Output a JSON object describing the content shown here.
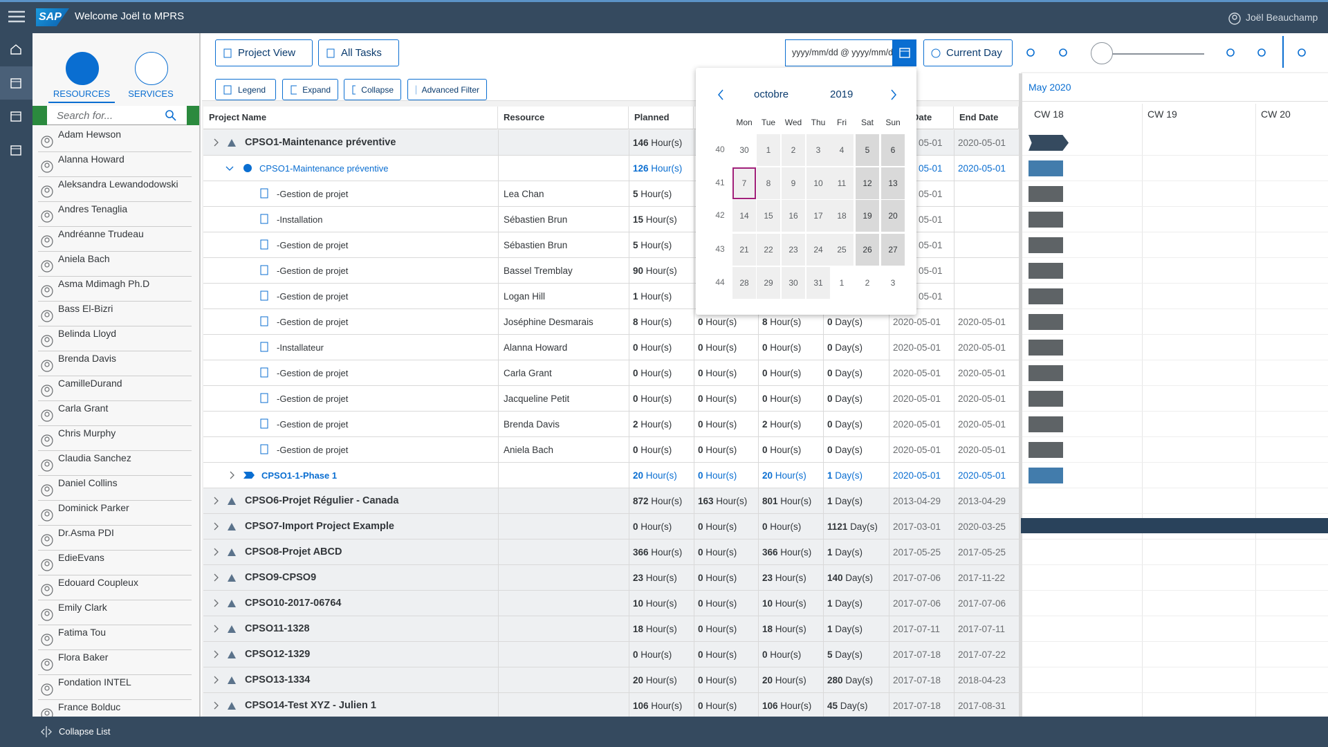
{
  "header": {
    "logo": "SAP",
    "welcome": "Welcome Joël to MPRS",
    "user": "Joël Beauchamp"
  },
  "sidebar": {
    "tabs": [
      "RESOURCES",
      "SERVICES"
    ],
    "search_placeholder": "Search for...",
    "resources": [
      "Adam Hewson",
      "Alanna Howard",
      "Aleksandra Lewandodowski",
      "Andres Tenaglia",
      "Andréanne Trudeau",
      "Aniela Bach",
      "Asma Mdimagh Ph.D",
      "Bass El-Bizri",
      "Belinda Lloyd",
      "Brenda Davis",
      "CamilleDurand",
      "Carla Grant",
      "Chris Murphy",
      "Claudia Sanchez",
      "Daniel Collins",
      "Dominick Parker",
      "Dr.Asma PDI",
      "EdieEvans",
      "Edouard Coupleux",
      "Emily Clark",
      "Fatima Tou",
      "Flora Baker",
      "Fondation INTEL",
      "France Bolduc"
    ],
    "footer": "Collapse List"
  },
  "toolbar": {
    "view": "Project View",
    "filter": "All Tasks",
    "date_placeholder": "yyyy/mm/dd @ yyyy/mm/dd",
    "current_day": "Current Day",
    "actions": [
      "Legend",
      "Expand",
      "Collapse",
      "Advanced Filter"
    ]
  },
  "table": {
    "columns": [
      "Project Name",
      "Resource",
      "Planned",
      "Date",
      "End Date"
    ],
    "rows": [
      {
        "kind": "project",
        "name": "CPSO1-Maintenance préventive",
        "planned": [
          146,
          "Hour(s)"
        ],
        "start": "05-01",
        "end": "2020-05-01"
      },
      {
        "kind": "summary",
        "name": "CPSO1-Maintenance préventive",
        "planned": [
          126,
          "Hour(s)"
        ],
        "start": "05-01",
        "end": "2020-05-01"
      },
      {
        "kind": "task",
        "name": "-Gestion de projet",
        "resource": "Lea Chan",
        "planned": [
          5,
          "Hour(s)"
        ],
        "start": "05-01"
      },
      {
        "kind": "task",
        "name": "-Installation",
        "resource": "Sébastien Brun",
        "planned": [
          15,
          "Hour(s)"
        ],
        "start": "05-01"
      },
      {
        "kind": "task",
        "name": "-Gestion de projet",
        "resource": "Sébastien Brun",
        "planned": [
          5,
          "Hour(s)"
        ],
        "start": "05-01"
      },
      {
        "kind": "task",
        "name": "-Gestion de projet",
        "resource": "Bassel Tremblay",
        "planned": [
          90,
          "Hour(s)"
        ],
        "start": "05-01"
      },
      {
        "kind": "task",
        "name": "-Gestion de projet",
        "resource": "Logan Hill",
        "planned": [
          1,
          "Hour(s)"
        ],
        "start": "05-01"
      },
      {
        "kind": "task",
        "name": "-Gestion de projet",
        "resource": "Joséphine Desmarais",
        "planned": [
          8,
          "Hour(s)"
        ],
        "h2": [
          0,
          "Hour(s)"
        ],
        "h3": [
          8,
          "Hour(s)"
        ],
        "days": [
          0,
          "Day(s)"
        ],
        "start": "2020-05-01",
        "end": "2020-05-01"
      },
      {
        "kind": "task",
        "name": "-Installateur",
        "resource": "Alanna Howard",
        "planned": [
          0,
          "Hour(s)"
        ],
        "h2": [
          0,
          "Hour(s)"
        ],
        "h3": [
          0,
          "Hour(s)"
        ],
        "days": [
          0,
          "Day(s)"
        ],
        "start": "2020-05-01",
        "end": "2020-05-01"
      },
      {
        "kind": "task",
        "name": "-Gestion de projet",
        "resource": "Carla Grant",
        "planned": [
          0,
          "Hour(s)"
        ],
        "h2": [
          0,
          "Hour(s)"
        ],
        "h3": [
          0,
          "Hour(s)"
        ],
        "days": [
          0,
          "Day(s)"
        ],
        "start": "2020-05-01",
        "end": "2020-05-01"
      },
      {
        "kind": "task",
        "name": "-Gestion de projet",
        "resource": "Jacqueline Petit",
        "planned": [
          0,
          "Hour(s)"
        ],
        "h2": [
          0,
          "Hour(s)"
        ],
        "h3": [
          0,
          "Hour(s)"
        ],
        "days": [
          0,
          "Day(s)"
        ],
        "start": "2020-05-01",
        "end": "2020-05-01"
      },
      {
        "kind": "task",
        "name": "-Gestion de projet",
        "resource": "Brenda Davis",
        "planned": [
          2,
          "Hour(s)"
        ],
        "h2": [
          0,
          "Hour(s)"
        ],
        "h3": [
          2,
          "Hour(s)"
        ],
        "days": [
          0,
          "Day(s)"
        ],
        "start": "2020-05-01",
        "end": "2020-05-01"
      },
      {
        "kind": "task",
        "name": "-Gestion de projet",
        "resource": "Aniela Bach",
        "planned": [
          0,
          "Hour(s)"
        ],
        "h2": [
          0,
          "Hour(s)"
        ],
        "h3": [
          0,
          "Hour(s)"
        ],
        "days": [
          0,
          "Day(s)"
        ],
        "start": "2020-05-01",
        "end": "2020-05-01"
      },
      {
        "kind": "phase",
        "name": "CPSO1-1-Phase 1",
        "planned": [
          20,
          "Hour(s)"
        ],
        "h2": [
          0,
          "Hour(s)"
        ],
        "h3": [
          20,
          "Hour(s)"
        ],
        "days": [
          1,
          "Day(s)"
        ],
        "start": "2020-05-01",
        "end": "2020-05-01"
      },
      {
        "kind": "project",
        "name": "CPSO6-Projet Régulier - Canada",
        "planned": [
          872,
          "Hour(s)"
        ],
        "h2": [
          163,
          "Hour(s)"
        ],
        "h3": [
          801,
          "Hour(s)"
        ],
        "days": [
          1,
          "Day(s)"
        ],
        "start": "2013-04-29",
        "end": "2013-04-29"
      },
      {
        "kind": "project",
        "name": "CPSO7-Import Project Example",
        "planned": [
          0,
          "Hour(s)"
        ],
        "h2": [
          0,
          "Hour(s)"
        ],
        "h3": [
          0,
          "Hour(s)"
        ],
        "days": [
          1121,
          "Day(s)"
        ],
        "start": "2017-03-01",
        "end": "2020-03-25"
      },
      {
        "kind": "project",
        "name": "CPSO8-Projet ABCD",
        "planned": [
          366,
          "Hour(s)"
        ],
        "h2": [
          0,
          "Hour(s)"
        ],
        "h3": [
          366,
          "Hour(s)"
        ],
        "days": [
          1,
          "Day(s)"
        ],
        "start": "2017-05-25",
        "end": "2017-05-25"
      },
      {
        "kind": "project",
        "name": "CPSO9-CPSO9",
        "planned": [
          23,
          "Hour(s)"
        ],
        "h2": [
          0,
          "Hour(s)"
        ],
        "h3": [
          23,
          "Hour(s)"
        ],
        "days": [
          140,
          "Day(s)"
        ],
        "start": "2017-07-06",
        "end": "2017-11-22"
      },
      {
        "kind": "project",
        "name": "CPSO10-2017-06764",
        "planned": [
          10,
          "Hour(s)"
        ],
        "h2": [
          0,
          "Hour(s)"
        ],
        "h3": [
          10,
          "Hour(s)"
        ],
        "days": [
          1,
          "Day(s)"
        ],
        "start": "2017-07-06",
        "end": "2017-07-06"
      },
      {
        "kind": "project",
        "name": "CPSO11-1328",
        "planned": [
          18,
          "Hour(s)"
        ],
        "h2": [
          0,
          "Hour(s)"
        ],
        "h3": [
          18,
          "Hour(s)"
        ],
        "days": [
          1,
          "Day(s)"
        ],
        "start": "2017-07-11",
        "end": "2017-07-11"
      },
      {
        "kind": "project",
        "name": "CPSO12-1329",
        "planned": [
          0,
          "Hour(s)"
        ],
        "h2": [
          0,
          "Hour(s)"
        ],
        "h3": [
          0,
          "Hour(s)"
        ],
        "days": [
          5,
          "Day(s)"
        ],
        "start": "2017-07-18",
        "end": "2017-07-22"
      },
      {
        "kind": "project",
        "name": "CPSO13-1334",
        "planned": [
          20,
          "Hour(s)"
        ],
        "h2": [
          0,
          "Hour(s)"
        ],
        "h3": [
          20,
          "Hour(s)"
        ],
        "days": [
          280,
          "Day(s)"
        ],
        "start": "2017-07-18",
        "end": "2018-04-23"
      },
      {
        "kind": "project",
        "name": "CPSO14-Test XYZ - Julien 1",
        "planned": [
          106,
          "Hour(s)"
        ],
        "h2": [
          0,
          "Hour(s)"
        ],
        "h3": [
          106,
          "Hour(s)"
        ],
        "days": [
          45,
          "Day(s)"
        ],
        "start": "2017-07-18",
        "end": "2017-08-31"
      }
    ]
  },
  "gantt": {
    "month": "May 2020",
    "weeks": [
      "CW 18",
      "CW 19",
      "CW 20"
    ]
  },
  "calendar": {
    "month": "octobre",
    "year": 2019,
    "weekdays": [
      "Mon",
      "Tue",
      "Wed",
      "Thu",
      "Fri",
      "Sat",
      "Sun"
    ],
    "weeks": [
      {
        "cw": 40,
        "days": [
          30,
          1,
          2,
          3,
          4,
          5,
          6
        ]
      },
      {
        "cw": 41,
        "days": [
          7,
          8,
          9,
          10,
          11,
          12,
          13
        ]
      },
      {
        "cw": 42,
        "days": [
          14,
          15,
          16,
          17,
          18,
          19,
          20
        ]
      },
      {
        "cw": 43,
        "days": [
          21,
          22,
          23,
          24,
          25,
          26,
          27
        ]
      },
      {
        "cw": 44,
        "days": [
          28,
          29,
          30,
          31,
          1,
          2,
          3
        ]
      }
    ],
    "selected": 7
  }
}
